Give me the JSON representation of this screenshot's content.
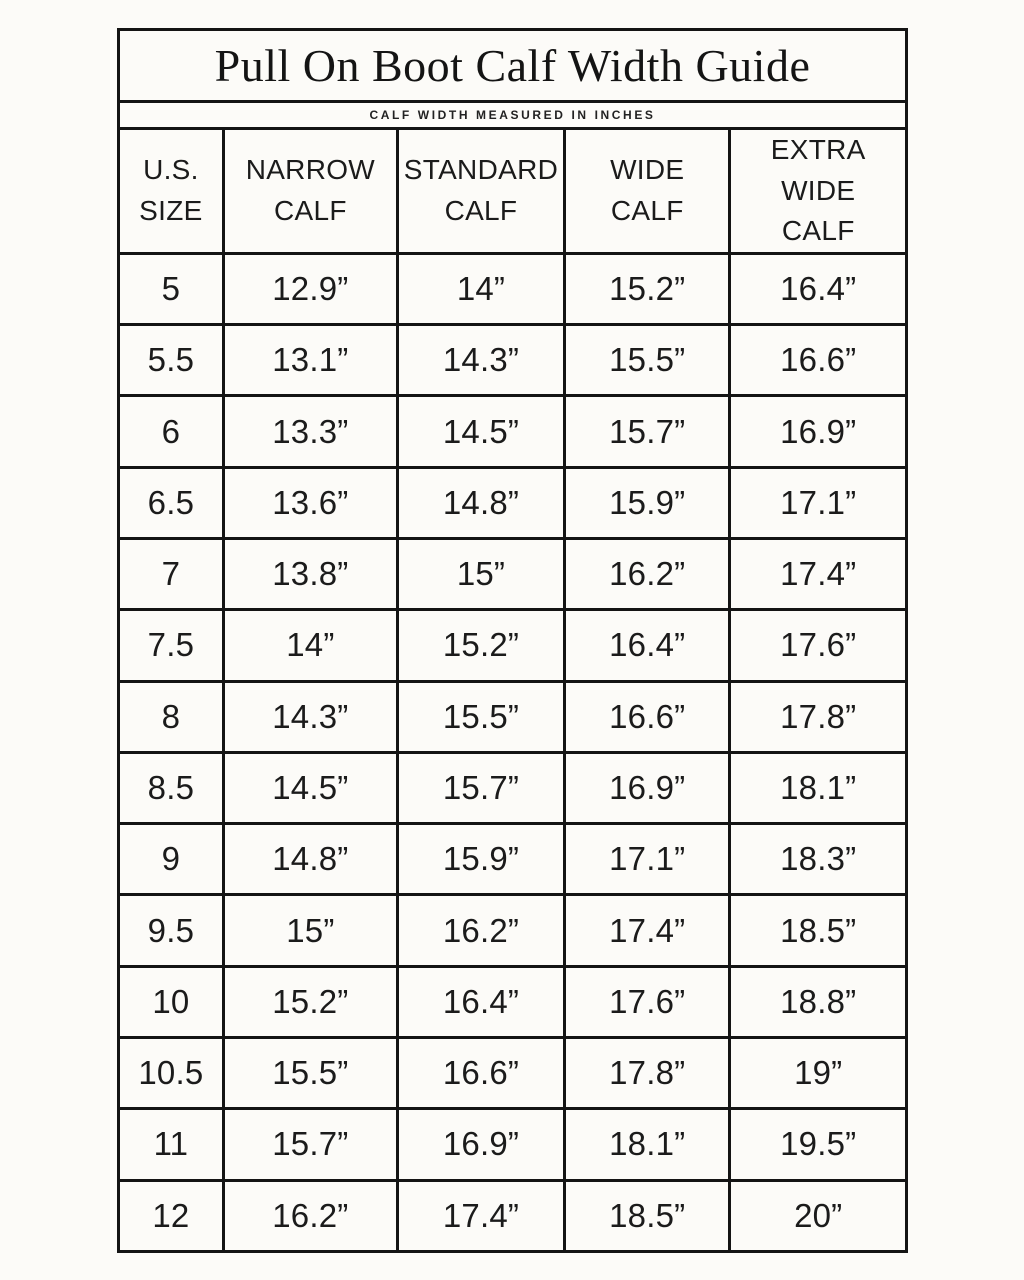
{
  "title": "Pull On Boot Calf Width Guide",
  "subtitle": "CALF WIDTH MEASURED IN INCHES",
  "colors": {
    "background": "#fcfbf8",
    "border": "#141414",
    "text": "#1b1b1b"
  },
  "chart_data": {
    "type": "table",
    "title": "Pull On Boot Calf Width Guide",
    "subtitle": "CALF WIDTH MEASURED IN INCHES",
    "columns": [
      "U.S.\nSIZE",
      "NARROW\nCALF",
      "STANDARD\nCALF",
      "WIDE\nCALF",
      "EXTRA WIDE\nCALF"
    ],
    "rows": [
      [
        "5",
        "12.9”",
        "14”",
        "15.2”",
        "16.4”"
      ],
      [
        "5.5",
        "13.1”",
        "14.3”",
        "15.5”",
        "16.6”"
      ],
      [
        "6",
        "13.3”",
        "14.5”",
        "15.7”",
        "16.9”"
      ],
      [
        "6.5",
        "13.6”",
        "14.8”",
        "15.9”",
        "17.1”"
      ],
      [
        "7",
        "13.8”",
        "15”",
        "16.2”",
        "17.4”"
      ],
      [
        "7.5",
        "14”",
        "15.2”",
        "16.4”",
        "17.6”"
      ],
      [
        "8",
        "14.3”",
        "15.5”",
        "16.6”",
        "17.8”"
      ],
      [
        "8.5",
        "14.5”",
        "15.7”",
        "16.9”",
        "18.1”"
      ],
      [
        "9",
        "14.8”",
        "15.9”",
        "17.1”",
        "18.3”"
      ],
      [
        "9.5",
        "15”",
        "16.2”",
        "17.4”",
        "18.5”"
      ],
      [
        "10",
        "15.2”",
        "16.4”",
        "17.6”",
        "18.8”"
      ],
      [
        "10.5",
        "15.5”",
        "16.6”",
        "17.8”",
        "19”"
      ],
      [
        "11",
        "15.7”",
        "16.9”",
        "18.1”",
        "19.5”"
      ],
      [
        "12",
        "16.2”",
        "17.4”",
        "18.5”",
        "20”"
      ]
    ]
  }
}
